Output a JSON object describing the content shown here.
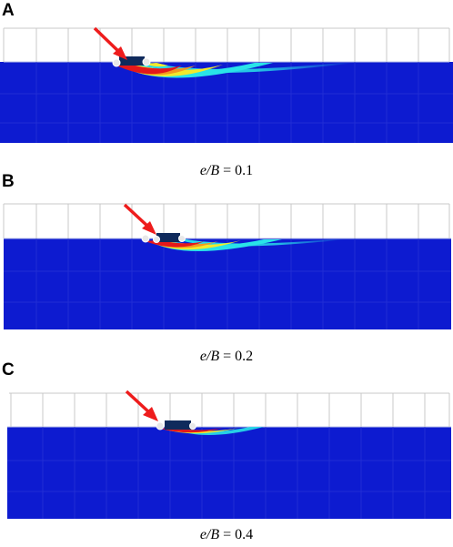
{
  "panels": [
    {
      "letter": "A",
      "caption_var": "e/B",
      "caption_rest": " = 0.1"
    },
    {
      "letter": "B",
      "caption_var": "e/B",
      "caption_rest": " = 0.2"
    },
    {
      "letter": "C",
      "caption_var": "e/B",
      "caption_rest": " = 0.4"
    }
  ],
  "colors": {
    "soil": "#0d1bd0",
    "grid": "#c8c8c8",
    "footing": "#0f2a5c",
    "arrow": "#ee1c1c",
    "red": "#e4181b",
    "yellow": "#f2ea2c",
    "cyan": "#29e3e8"
  }
}
